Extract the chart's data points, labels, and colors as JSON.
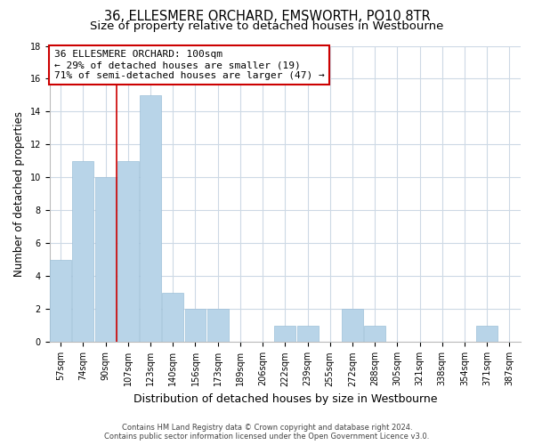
{
  "title": "36, ELLESMERE ORCHARD, EMSWORTH, PO10 8TR",
  "subtitle": "Size of property relative to detached houses in Westbourne",
  "xlabel": "Distribution of detached houses by size in Westbourne",
  "ylabel": "Number of detached properties",
  "bar_labels": [
    "57sqm",
    "74sqm",
    "90sqm",
    "107sqm",
    "123sqm",
    "140sqm",
    "156sqm",
    "173sqm",
    "189sqm",
    "206sqm",
    "222sqm",
    "239sqm",
    "255sqm",
    "272sqm",
    "288sqm",
    "305sqm",
    "321sqm",
    "338sqm",
    "354sqm",
    "371sqm",
    "387sqm"
  ],
  "bar_values": [
    5,
    11,
    10,
    11,
    15,
    3,
    2,
    2,
    0,
    0,
    1,
    1,
    0,
    2,
    1,
    0,
    0,
    0,
    0,
    1,
    0
  ],
  "bar_color": "#b8d4e8",
  "bar_edge_color": "#9dc0d8",
  "reference_line_x": 2.5,
  "reference_line_color": "#cc0000",
  "annotation_line1": "36 ELLESMERE ORCHARD: 100sqm",
  "annotation_line2": "← 29% of detached houses are smaller (19)",
  "annotation_line3": "71% of semi-detached houses are larger (47) →",
  "annotation_box_color": "#ffffff",
  "annotation_box_edge": "#cc0000",
  "ylim": [
    0,
    18
  ],
  "yticks": [
    0,
    2,
    4,
    6,
    8,
    10,
    12,
    14,
    16,
    18
  ],
  "footer_line1": "Contains HM Land Registry data © Crown copyright and database right 2024.",
  "footer_line2": "Contains public sector information licensed under the Open Government Licence v3.0.",
  "bg_color": "#ffffff",
  "grid_color": "#cdd9e5",
  "title_fontsize": 10.5,
  "subtitle_fontsize": 9.5,
  "xlabel_fontsize": 9,
  "ylabel_fontsize": 8.5,
  "tick_fontsize": 7,
  "annotation_fontsize": 8,
  "footer_fontsize": 6
}
